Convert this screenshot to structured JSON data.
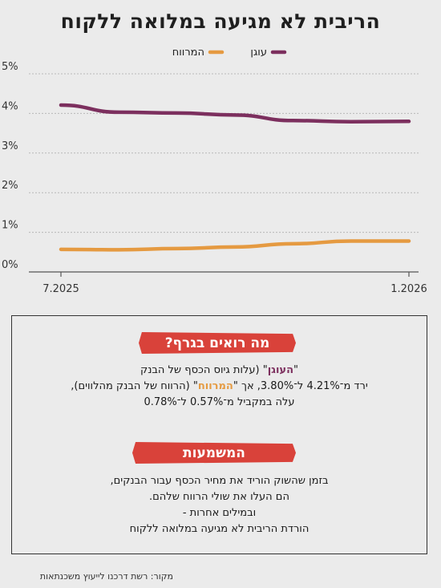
{
  "title": "הריבית לא מגיעה במלואה ללקוח",
  "chart_data": {
    "type": "line",
    "title": "הריבית לא מגיעה במלואה ללקוח",
    "x": [
      "7.2025",
      "8.2025",
      "9.2025",
      "10.2025",
      "11.2025",
      "12.2025",
      "1.2026"
    ],
    "x_tick_labels": [
      "7.2025",
      "1.2026"
    ],
    "y_ticks": [
      "0%",
      "1%",
      "2%",
      "3%",
      "4%",
      "5%"
    ],
    "ylim": [
      0,
      5
    ],
    "grid": true,
    "legend_position": "top-center",
    "series": [
      {
        "name": "עוגן",
        "color": "#7c2f5e",
        "values": [
          4.21,
          4.03,
          4.01,
          3.96,
          3.82,
          3.79,
          3.8
        ]
      },
      {
        "name": "המרווח",
        "color": "#e59a41",
        "values": [
          0.57,
          0.56,
          0.59,
          0.63,
          0.71,
          0.78,
          0.78
        ]
      }
    ]
  },
  "info_box": {
    "heading1": "מה רואים בגרף?",
    "p1_q1": "\"",
    "p1_anchor": "העוגן",
    "p1_q2": "\"",
    "p1_line1_rest": " (עלות גיוס הכסף של הבנק",
    "p1_line2a": "ירד מ־4.21% ל־3.80%, אך \"",
    "p1_spread": "המרווח",
    "p1_line2b": "\" (הרווח של הבנק מהלווים),",
    "p1_line3": "עלה במקביל מ־0.57% ל־0.78%",
    "heading2": "המשמעות",
    "p2_line1": "בזמן שהשוק הוריד את מחיר הכסף עבור הבנקים,",
    "p2_line2": "הם העלו את שולי הרווח שלהם.",
    "p2_line3": "ובמילים אחרות -",
    "p2_line4": "הורדת הריבית לא מגיעה במלואה ללקוח"
  },
  "source": "מקור: רשת דרכנו לייעוץ משכנתאות"
}
